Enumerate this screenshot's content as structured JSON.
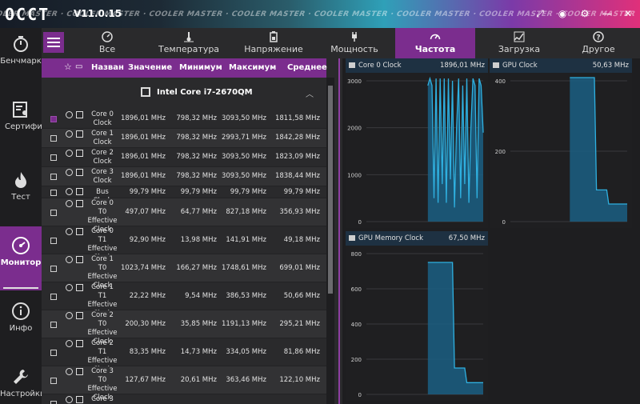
{
  "app": {
    "logo": "OCCT",
    "version": "V11.0.15",
    "banner": "COOLER MASTER · COOLER MASTER · COOLER MASTER · COOLER MASTER · COOLER MASTER · COOLER MASTER · COOLER MASTER · COOLER MASTER"
  },
  "sidebar": {
    "items": [
      {
        "label": "Бенчмарк",
        "icon": "stopwatch-icon"
      },
      {
        "label": "Сертификат",
        "icon": "certificate-icon"
      },
      {
        "label": "Тест",
        "icon": "flame-icon"
      },
      {
        "label": "Монитор",
        "icon": "gauge-icon",
        "active": true
      },
      {
        "label": "Инфо",
        "icon": "info-icon"
      },
      {
        "label": "Настройки",
        "icon": "wrench-icon"
      }
    ]
  },
  "tabs": [
    {
      "label": "Все",
      "icon": "all-icon"
    },
    {
      "label": "Температура",
      "icon": "thermometer-icon"
    },
    {
      "label": "Напряжение",
      "icon": "battery-icon"
    },
    {
      "label": "Мощность",
      "icon": "plug-icon"
    },
    {
      "label": "Частота",
      "icon": "frequency-gauge-icon",
      "active": true
    },
    {
      "label": "Загрузка",
      "icon": "load-icon"
    },
    {
      "label": "Другое",
      "icon": "question-icon"
    }
  ],
  "table": {
    "headers": {
      "name": "Назван",
      "value": "Значение",
      "min": "Минимум",
      "max": "Максимум",
      "avg": "Среднее"
    },
    "group": "Intel Core i7-2670QM",
    "rows": [
      {
        "name": "Core 0 Clock",
        "value": "1896,01 MHz",
        "min": "798,32 MHz",
        "max": "3093,50 MHz",
        "avg": "1811,58 MHz",
        "checked": true
      },
      {
        "name": "Core 1 Clock",
        "value": "1896,01 MHz",
        "min": "798,32 MHz",
        "max": "2993,71 MHz",
        "avg": "1842,28 MHz"
      },
      {
        "name": "Core 2 Clock",
        "value": "1896,01 MHz",
        "min": "798,32 MHz",
        "max": "3093,50 MHz",
        "avg": "1823,09 MHz"
      },
      {
        "name": "Core 3 Clock",
        "value": "1896,01 MHz",
        "min": "798,32 MHz",
        "max": "3093,50 MHz",
        "avg": "1838,44 MHz"
      },
      {
        "name": "Bus Clock",
        "value": "99,79 MHz",
        "min": "99,79 MHz",
        "max": "99,79 MHz",
        "avg": "99,79 MHz"
      },
      {
        "name": "Core 0 T0 Effective Clock",
        "value": "497,07 MHz",
        "min": "64,77 MHz",
        "max": "827,18 MHz",
        "avg": "356,93 MHz"
      },
      {
        "name": "Core 0 T1 Effective Clock",
        "value": "92,90 MHz",
        "min": "13,98 MHz",
        "max": "141,91 MHz",
        "avg": "49,18 MHz"
      },
      {
        "name": "Core 1 T0 Effective Clock",
        "value": "1023,74 MHz",
        "min": "166,27 MHz",
        "max": "1748,61 MHz",
        "avg": "699,01 MHz"
      },
      {
        "name": "Core 1 T1 Effective Clock",
        "value": "22,22 MHz",
        "min": "9,54 MHz",
        "max": "386,53 MHz",
        "avg": "50,66 MHz"
      },
      {
        "name": "Core 2 T0 Effective Clock",
        "value": "200,30 MHz",
        "min": "35,85 MHz",
        "max": "1191,13 MHz",
        "avg": "295,21 MHz"
      },
      {
        "name": "Core 2 T1 Effective Clock",
        "value": "83,35 MHz",
        "min": "14,73 MHz",
        "max": "334,05 MHz",
        "avg": "81,86 MHz"
      },
      {
        "name": "Core 3 T0 Effective Clock",
        "value": "127,67 MHz",
        "min": "20,61 MHz",
        "max": "363,46 MHz",
        "avg": "122,10 MHz"
      },
      {
        "name": "Core 3 T1",
        "value": "",
        "min": "",
        "max": "",
        "avg": ""
      }
    ]
  },
  "charts": [
    {
      "name": "Core 0 Clock",
      "value": "1896,01 MHz",
      "ticks": [
        "3000",
        "2000",
        "1000",
        "0"
      ],
      "ymax": 3000,
      "series": [
        0,
        0,
        0,
        0,
        0,
        0,
        0,
        0,
        0,
        0,
        0,
        0,
        0,
        0,
        0,
        0,
        0,
        0,
        0,
        0,
        0,
        0,
        0,
        0,
        0,
        0,
        0,
        0,
        0,
        0,
        2900,
        3050,
        2900,
        500,
        3050,
        400,
        3050,
        800,
        3050,
        400,
        3050,
        900,
        3000,
        300,
        2000,
        3050,
        500,
        2900,
        800,
        3050,
        400,
        2000,
        3050,
        2900,
        500,
        3050,
        2900,
        1896
      ]
    },
    {
      "name": "GPU Clock",
      "value": "50,63 MHz",
      "ticks": [
        "400",
        "200",
        "0"
      ],
      "ymax": 540,
      "series": [
        0,
        0,
        0,
        0,
        0,
        0,
        0,
        0,
        0,
        0,
        0,
        0,
        0,
        0,
        0,
        0,
        0,
        0,
        0,
        0,
        0,
        0,
        0,
        0,
        0,
        0,
        0,
        0,
        0,
        530,
        530,
        530,
        530,
        530,
        530,
        530,
        530,
        530,
        530,
        530,
        530,
        530,
        90,
        90,
        90,
        90,
        90,
        90,
        50,
        50,
        50,
        50,
        50,
        50,
        50,
        50,
        50,
        50
      ]
    },
    {
      "name": "GPU Memory Clock",
      "value": "67,50 MHz",
      "ticks": [
        "800",
        "600",
        "400",
        "200",
        "0"
      ],
      "ymax": 810,
      "series": [
        0,
        0,
        0,
        0,
        0,
        0,
        0,
        0,
        0,
        0,
        0,
        0,
        0,
        0,
        0,
        0,
        0,
        0,
        0,
        0,
        0,
        0,
        0,
        0,
        0,
        0,
        0,
        0,
        0,
        0,
        750,
        750,
        750,
        750,
        750,
        750,
        750,
        750,
        750,
        750,
        750,
        750,
        750,
        150,
        150,
        150,
        150,
        150,
        150,
        67,
        67,
        67,
        67,
        67,
        67,
        67,
        67,
        67
      ]
    }
  ],
  "colors": {
    "accent": "#7b2d8e",
    "chart_line": "#2fb0e0",
    "chart_fill": "#1b5f82",
    "chart_head": "#1e3142"
  }
}
